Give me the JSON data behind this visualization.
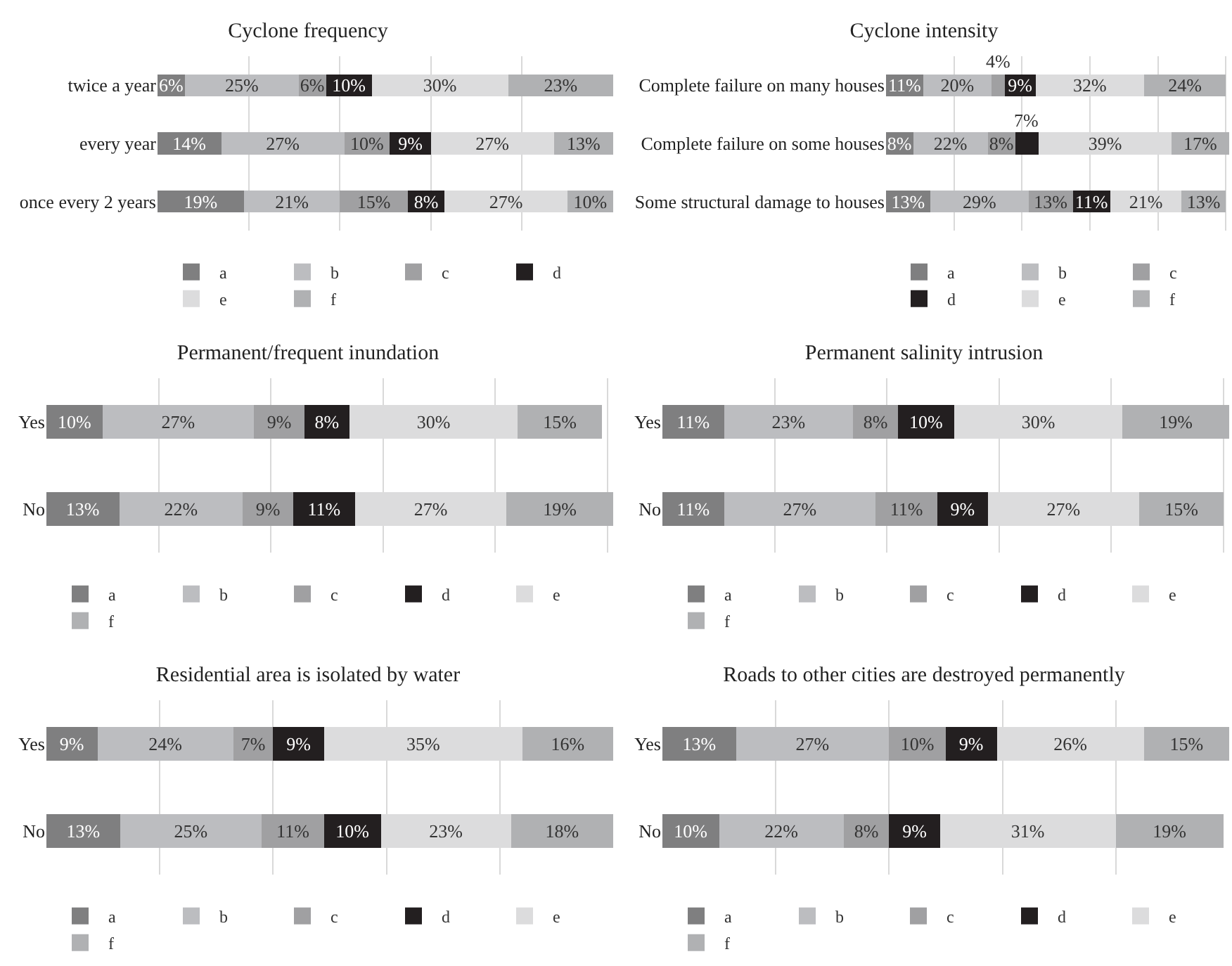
{
  "chart_data": [
    {
      "type": "bar",
      "title": "Cyclone frequency",
      "orientation": "horizontal",
      "stacked": true,
      "categories": [
        "twice a year",
        "every year",
        "once every 2 years"
      ],
      "grid": "x",
      "tick_labels": "y",
      "legend": "bottom",
      "series": [
        {
          "name": "a",
          "color": "#7f7f80",
          "values": [
            6,
            14,
            19
          ],
          "value_labels": [
            "6%",
            "14%",
            "19%"
          ]
        },
        {
          "name": "b",
          "color": "#bcbdc0",
          "values": [
            25,
            27,
            21
          ],
          "value_labels": [
            "25%",
            "27%",
            "21%"
          ]
        },
        {
          "name": "c",
          "color": "#a0a0a2",
          "values": [
            6,
            10,
            15
          ],
          "value_labels": [
            "6%",
            "10%",
            "15%"
          ]
        },
        {
          "name": "d",
          "color": "#231f20",
          "values": [
            10,
            9,
            8
          ],
          "value_labels": [
            "10%",
            "9%",
            "8%"
          ]
        },
        {
          "name": "e",
          "color": "#dcdcdd",
          "values": [
            30,
            27,
            27
          ],
          "value_labels": [
            "30%",
            "27%",
            "27%"
          ]
        },
        {
          "name": "f",
          "color": "#b0b1b3",
          "values": [
            23,
            13,
            10
          ],
          "value_labels": [
            "23%",
            "13%",
            "10%"
          ]
        }
      ]
    },
    {
      "type": "bar",
      "title": "Cyclone intensity",
      "orientation": "horizontal",
      "stacked": true,
      "categories": [
        "Complete failure on many houses",
        "Complete failure on some houses",
        "Some structural damage to houses"
      ],
      "grid": "x",
      "tick_labels": "y",
      "legend": "bottom",
      "series": [
        {
          "name": "a",
          "color": "#7f7f80",
          "values": [
            11,
            8,
            13
          ],
          "value_labels": [
            "11%",
            "8%",
            "13%"
          ]
        },
        {
          "name": "b",
          "color": "#bcbdc0",
          "values": [
            20,
            22,
            29
          ],
          "value_labels": [
            "20%",
            "22%",
            "29%"
          ]
        },
        {
          "name": "c",
          "color": "#a0a0a2",
          "values": [
            4,
            8,
            13
          ],
          "value_labels": [
            "4%",
            "8%",
            "13%"
          ]
        },
        {
          "name": "d",
          "color": "#231f20",
          "values": [
            9,
            7,
            11
          ],
          "value_labels": [
            "9%",
            "7%",
            "11%"
          ]
        },
        {
          "name": "e",
          "color": "#dcdcdd",
          "values": [
            32,
            39,
            21
          ],
          "value_labels": [
            "32%",
            "39%",
            "21%"
          ]
        },
        {
          "name": "f",
          "color": "#b0b1b3",
          "values": [
            24,
            17,
            13
          ],
          "value_labels": [
            "24%",
            "17%",
            "13%"
          ]
        }
      ]
    },
    {
      "type": "bar",
      "title": "Permanent/frequent inundation",
      "orientation": "horizontal",
      "stacked": true,
      "categories": [
        "Yes",
        "No"
      ],
      "grid": "x",
      "tick_labels": "y",
      "legend": "bottom",
      "series": [
        {
          "name": "a",
          "color": "#7f7f80",
          "values": [
            10,
            13
          ],
          "value_labels": [
            "10%",
            "13%"
          ]
        },
        {
          "name": "b",
          "color": "#bcbdc0",
          "values": [
            27,
            22
          ],
          "value_labels": [
            "27%",
            "22%"
          ]
        },
        {
          "name": "c",
          "color": "#a0a0a2",
          "values": [
            9,
            9
          ],
          "value_labels": [
            "9%",
            "9%"
          ]
        },
        {
          "name": "d",
          "color": "#231f20",
          "values": [
            8,
            11
          ],
          "value_labels": [
            "8%",
            "11%"
          ]
        },
        {
          "name": "e",
          "color": "#dcdcdd",
          "values": [
            30,
            27
          ],
          "value_labels": [
            "30%",
            "27%"
          ]
        },
        {
          "name": "f",
          "color": "#b0b1b3",
          "values": [
            15,
            19
          ],
          "value_labels": [
            "15%",
            "19%"
          ]
        }
      ]
    },
    {
      "type": "bar",
      "title": "Permanent salinity intrusion",
      "orientation": "horizontal",
      "stacked": true,
      "categories": [
        "Yes",
        "No"
      ],
      "grid": "x",
      "tick_labels": "y",
      "legend": "bottom",
      "series": [
        {
          "name": "a",
          "color": "#7f7f80",
          "values": [
            11,
            11
          ],
          "value_labels": [
            "11%",
            "11%"
          ]
        },
        {
          "name": "b",
          "color": "#bcbdc0",
          "values": [
            23,
            27
          ],
          "value_labels": [
            "23%",
            "27%"
          ]
        },
        {
          "name": "c",
          "color": "#a0a0a2",
          "values": [
            8,
            11
          ],
          "value_labels": [
            "8%",
            "11%"
          ]
        },
        {
          "name": "d",
          "color": "#231f20",
          "values": [
            10,
            9
          ],
          "value_labels": [
            "10%",
            "9%"
          ]
        },
        {
          "name": "e",
          "color": "#dcdcdd",
          "values": [
            30,
            27
          ],
          "value_labels": [
            "30%",
            "27%"
          ]
        },
        {
          "name": "f",
          "color": "#b0b1b3",
          "values": [
            19,
            15
          ],
          "value_labels": [
            "19%",
            "15%"
          ]
        }
      ]
    },
    {
      "type": "bar",
      "title": "Residential area is isolated by water",
      "orientation": "horizontal",
      "stacked": true,
      "categories": [
        "Yes",
        "No"
      ],
      "grid": "x",
      "tick_labels": "y",
      "legend": "bottom",
      "series": [
        {
          "name": "a",
          "color": "#7f7f80",
          "values": [
            9,
            13
          ],
          "value_labels": [
            "9%",
            "13%"
          ]
        },
        {
          "name": "b",
          "color": "#bcbdc0",
          "values": [
            24,
            25
          ],
          "value_labels": [
            "24%",
            "25%"
          ]
        },
        {
          "name": "c",
          "color": "#a0a0a2",
          "values": [
            7,
            11
          ],
          "value_labels": [
            "7%",
            "11%"
          ]
        },
        {
          "name": "d",
          "color": "#231f20",
          "values": [
            9,
            10
          ],
          "value_labels": [
            "9%",
            "10%"
          ]
        },
        {
          "name": "e",
          "color": "#dcdcdd",
          "values": [
            35,
            23
          ],
          "value_labels": [
            "35%",
            "23%"
          ]
        },
        {
          "name": "f",
          "color": "#b0b1b3",
          "values": [
            16,
            18
          ],
          "value_labels": [
            "16%",
            "18%"
          ]
        }
      ]
    },
    {
      "type": "bar",
      "title": "Roads to other cities are destroyed permanently",
      "orientation": "horizontal",
      "stacked": true,
      "categories": [
        "Yes",
        "No"
      ],
      "grid": "x",
      "tick_labels": "y",
      "legend": "bottom",
      "series": [
        {
          "name": "a",
          "color": "#7f7f80",
          "values": [
            13,
            10
          ],
          "value_labels": [
            "13%",
            "10%"
          ]
        },
        {
          "name": "b",
          "color": "#bcbdc0",
          "values": [
            27,
            22
          ],
          "value_labels": [
            "27%",
            "22%"
          ]
        },
        {
          "name": "c",
          "color": "#a0a0a2",
          "values": [
            10,
            8
          ],
          "value_labels": [
            "10%",
            "8%"
          ]
        },
        {
          "name": "d",
          "color": "#231f20",
          "values": [
            9,
            9
          ],
          "value_labels": [
            "9%",
            "9%"
          ]
        },
        {
          "name": "e",
          "color": "#dcdcdd",
          "values": [
            26,
            31
          ],
          "value_labels": [
            "26%",
            "31%"
          ]
        },
        {
          "name": "f",
          "color": "#b0b1b3",
          "values": [
            15,
            19
          ],
          "value_labels": [
            "15%",
            "19%"
          ]
        }
      ]
    }
  ]
}
